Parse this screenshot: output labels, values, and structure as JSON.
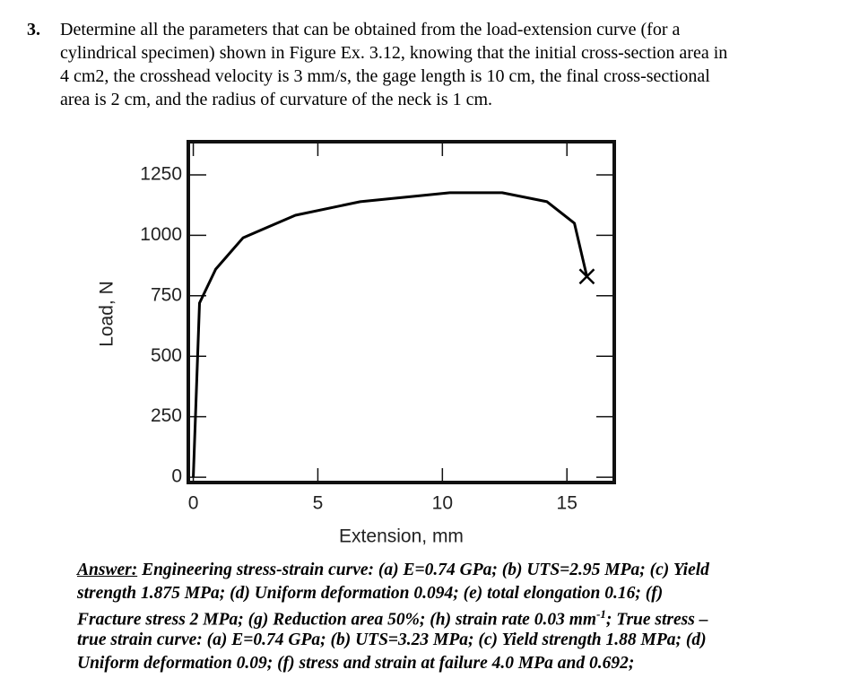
{
  "question": {
    "number": "3.",
    "lines": [
      "Determine all the parameters that can be obtained from the load-extension curve (for a",
      "cylindrical specimen) shown in Figure Ex. 3.12, knowing that the initial cross-section area in",
      "4 cm2, the crosshead velocity is 3 mm/s, the gage length is 10 cm, the final cross-sectional",
      "area is 2 cm, and the radius of curvature of the neck is 1 cm."
    ]
  },
  "chart_data": {
    "type": "line",
    "xlabel": "Extension, mm",
    "ylabel": "Load, N",
    "x": [
      0,
      0.25,
      0.9,
      2.0,
      4.1,
      6.7,
      10.3,
      12.4,
      14.2,
      15.3,
      15.8
    ],
    "values": [
      0,
      720,
      860,
      990,
      1083,
      1139,
      1176,
      1176,
      1139,
      1050,
      830
    ],
    "color": "#000000",
    "xlim": [
      -0.2,
      16.9
    ],
    "ylim": [
      -22,
      1387
    ],
    "xticks": [
      0,
      5,
      10,
      15
    ],
    "yticks": [
      0,
      250,
      500,
      750,
      1000,
      1250
    ],
    "grid": false
  },
  "answer": {
    "label": "Answer:",
    "lines": [
      "Engineering stress-strain curve: (a) E=0.74 GPa; (b) UTS=2.95 MPa; (c) Yield",
      "strength 1.875 MPa; (d) Uniform deformation 0.094; (e) total elongation 0.16; (f)",
      [
        "Fracture stress 2 MPa; (g) Reduction area 50%; (h) strain rate 0.03 mm",
        "-1",
        "; True stress –"
      ],
      "true strain curve: (a) E=0.74 GPa; (b) UTS=3.23 MPa; (c) Yield strength 1.88 MPa; (d)",
      "Uniform deformation 0.09; (f) stress and strain at failure 4.0 MPa and 0.692;"
    ]
  }
}
